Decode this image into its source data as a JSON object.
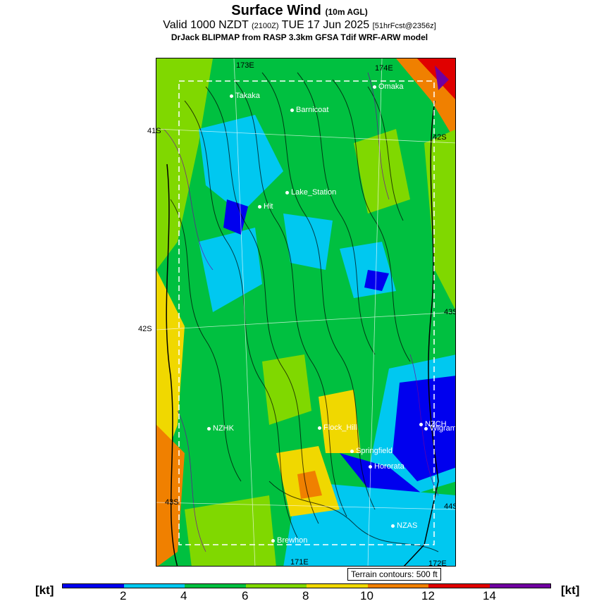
{
  "header": {
    "title": "Surface Wind",
    "title_suffix": "(10m AGL)",
    "valid_prefix": "Valid 1000 NZDT",
    "valid_zulu": "(2100Z)",
    "valid_date": "TUE 17 Jun 2025",
    "forecast": "[51hrFcst@2356z]",
    "model": "DrJack BLIPMAP from RASP 3.3km GFSA Tdif WRF-ARW model"
  },
  "map": {
    "grid_labels": {
      "lon_173e": "173E",
      "lon_174e": "174E",
      "lat_41s": "41S",
      "lat_42s_right": "42S",
      "lat_42s_left": "42S",
      "lat_43s_right": "43S",
      "lat_43s_left": "43S",
      "lat_44s": "44S",
      "lon_171e": "171E",
      "lon_172e": "172E"
    },
    "stations": [
      {
        "name": "Takaka"
      },
      {
        "name": "Omaka"
      },
      {
        "name": "Barnicoat"
      },
      {
        "name": "Lake_Station"
      },
      {
        "name": "Hit"
      },
      {
        "name": "NZHK"
      },
      {
        "name": "Flock_Hill"
      },
      {
        "name": "NZCH"
      },
      {
        "name": "Wigram"
      },
      {
        "name": "Springfield"
      },
      {
        "name": "Hororata"
      },
      {
        "name": "NZAS"
      },
      {
        "name": "Brewhon"
      }
    ]
  },
  "terrain_note": "Terrain contours: 500 ft",
  "colorbar": {
    "unit_label": "[kt]",
    "ticks": [
      "2",
      "4",
      "6",
      "8",
      "10",
      "12",
      "14"
    ],
    "colors": [
      "#0000ee",
      "#00c8f0",
      "#00c040",
      "#80d800",
      "#f0d800",
      "#f08000",
      "#e00000",
      "#7000a0"
    ]
  }
}
